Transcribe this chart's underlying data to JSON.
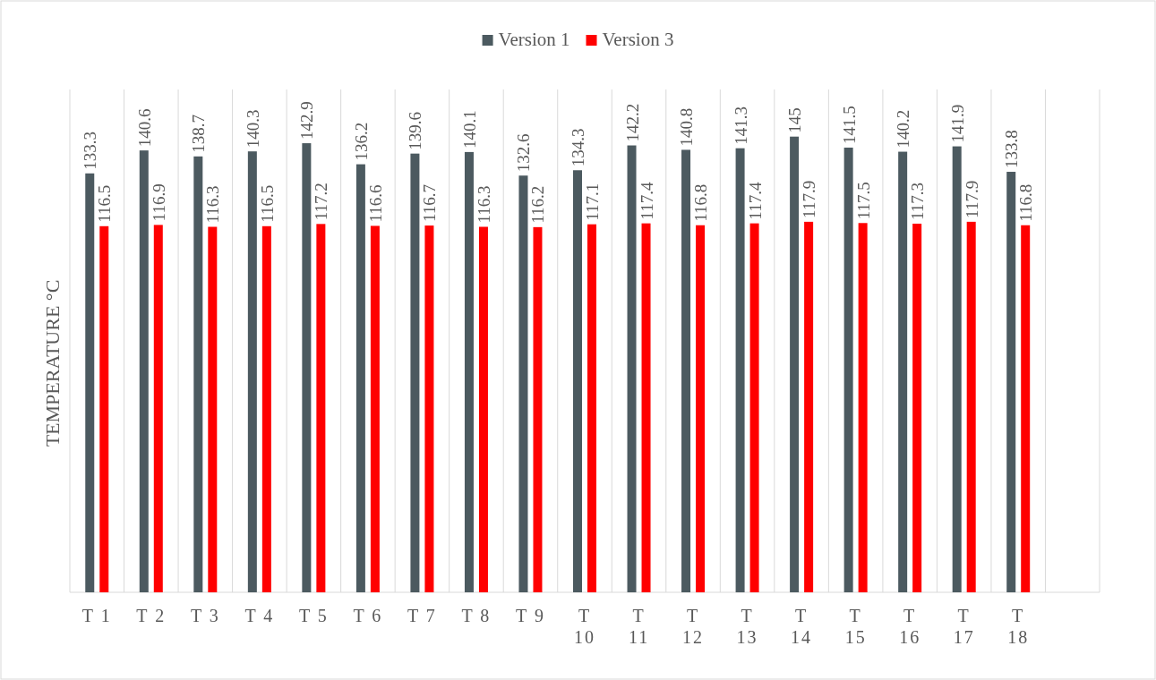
{
  "chart_data": {
    "type": "bar",
    "ylabel": "TEMPERATURE °C",
    "categories": [
      "T 1",
      "T 2",
      "T 3",
      "T 4",
      "T 5",
      "T 6",
      "T 7",
      "T 8",
      "T 9",
      "T 10",
      "T 11",
      "T 12",
      "T 13",
      "T 14",
      "T 15",
      "T 16",
      "T 17",
      "T 18",
      null
    ],
    "series": [
      {
        "name": "Version 1",
        "color": "#4c5a60",
        "values": [
          133.3,
          140.6,
          138.7,
          140.3,
          142.9,
          136.2,
          139.6,
          140.1,
          132.6,
          134.3,
          142.2,
          140.8,
          141.3,
          145,
          141.5,
          140.2,
          141.9,
          133.8,
          null
        ]
      },
      {
        "name": "Version 3",
        "color": "#ff0000",
        "values": [
          116.5,
          116.9,
          116.3,
          116.5,
          117.2,
          116.6,
          116.7,
          116.3,
          116.2,
          117.1,
          117.4,
          116.8,
          117.4,
          117.9,
          117.5,
          117.3,
          117.9,
          116.8,
          null
        ]
      }
    ],
    "ylim": [
      0,
      160
    ],
    "tick_labels": "x",
    "grid": "x",
    "legend": "top",
    "data_labels": true
  }
}
